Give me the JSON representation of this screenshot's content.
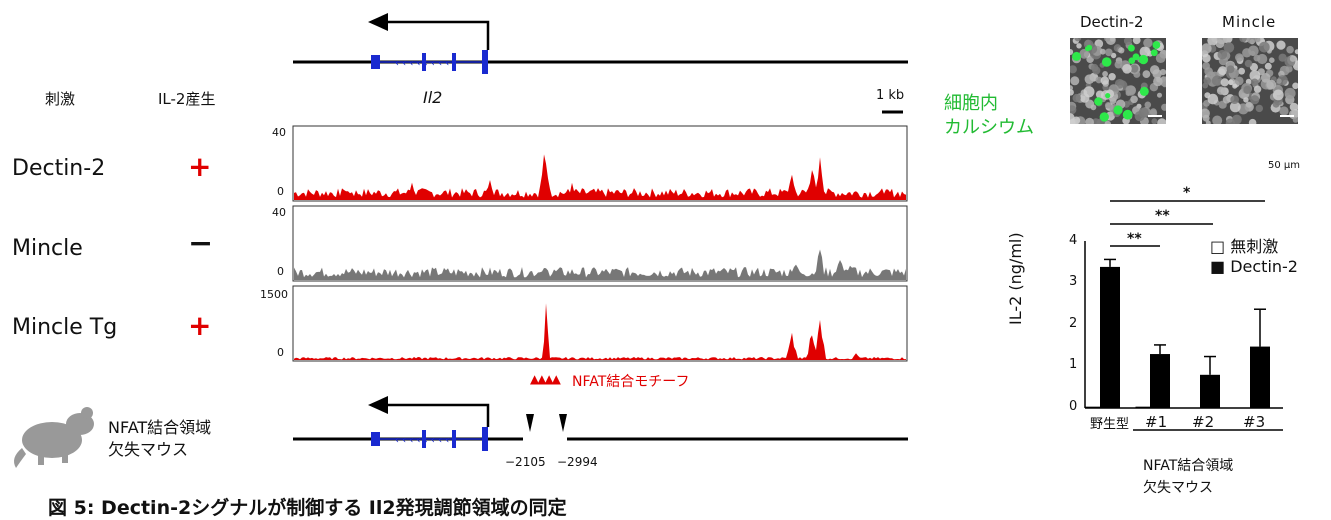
{
  "left_labels": {
    "stimulus_header": "刺激",
    "il2_header": "IL-2産生",
    "rows": [
      {
        "name": "Dectin-2",
        "sign": "+"
      },
      {
        "name": "Mincle",
        "sign": "−"
      },
      {
        "name": "Mincle Tg",
        "sign": "+"
      }
    ]
  },
  "gene": {
    "name": "Il2",
    "scale_bar": "1 kb"
  },
  "tracks": [
    {
      "ymax_label": "40",
      "ymin_label": "0",
      "color": "#e00000"
    },
    {
      "ymax_label": "40",
      "ymin_label": "0",
      "color": "#777777"
    },
    {
      "ymax_label": "1500",
      "ymin_label": "0",
      "color": "#e00000"
    }
  ],
  "motif": {
    "label": "NFAT結合モチーフ",
    "marks": "▲▲▲▲"
  },
  "knockout": {
    "mouse_label_line1": "NFAT結合領域",
    "mouse_label_line2": "欠失マウス",
    "pos1": "−2105",
    "pos2": "−2994"
  },
  "calcium": {
    "label_line1": "細胞内",
    "label_line2": "カルシウム",
    "panel1": "Dectin-2",
    "panel2": "Mincle",
    "scale": "50 μm"
  },
  "chart_data": {
    "type": "bar",
    "ylabel": "IL-2 (ng/ml)",
    "ylim": [
      0,
      4
    ],
    "yticks": [
      "0",
      "1",
      "2",
      "3",
      "4"
    ],
    "categories": [
      "野生型",
      "#1",
      "#2",
      "#3"
    ],
    "group_label_line1": "NFAT結合領域",
    "group_label_line2": "欠失マウス",
    "series": [
      {
        "name": "無刺激",
        "values": [
          0.02,
          0.02,
          0.0,
          0.0
        ],
        "errors": [
          0,
          0,
          0,
          0
        ]
      },
      {
        "name": "Dectin-2",
        "values": [
          3.4,
          1.3,
          0.8,
          1.48
        ],
        "errors": [
          0.18,
          0.22,
          0.44,
          0.9
        ]
      }
    ],
    "significance": [
      "**",
      "**",
      "*"
    ],
    "legend_position": "top-right"
  },
  "caption": "図 5: Dectin-2シグナルが制御する Il2発現調節領域の同定"
}
